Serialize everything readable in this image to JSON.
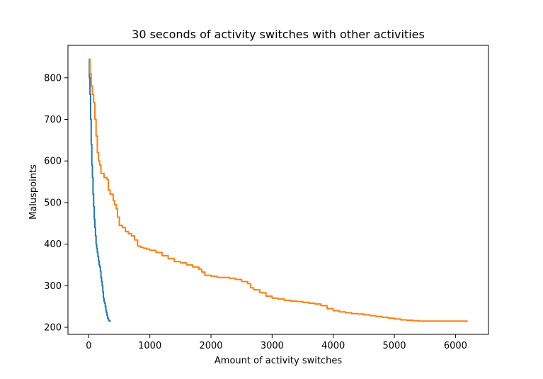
{
  "chart_data": {
    "type": "line",
    "title": "30 seconds of activity switches with other activities",
    "xlabel": "Amount of activity switches",
    "ylabel": "Maluspoints",
    "xlim": [
      -340,
      6540
    ],
    "ylim": [
      183,
      878
    ],
    "xticks": [
      0,
      1000,
      2000,
      3000,
      4000,
      5000,
      6000
    ],
    "yticks": [
      200,
      300,
      400,
      500,
      600,
      700,
      800
    ],
    "grid": false,
    "legend": "none",
    "series": [
      {
        "color": "#1f77b4",
        "x": [
          0,
          10,
          20,
          30,
          40,
          50,
          60,
          70,
          80,
          90,
          100,
          110,
          120,
          130,
          140,
          150,
          160,
          170,
          180,
          190,
          200,
          210,
          220,
          230,
          240,
          250,
          260,
          270,
          280,
          290,
          300,
          310,
          320,
          330,
          340,
          350,
          360
        ],
        "values": [
          845,
          800,
          760,
          700,
          640,
          590,
          560,
          520,
          490,
          460,
          440,
          420,
          400,
          390,
          380,
          370,
          360,
          350,
          345,
          335,
          320,
          310,
          300,
          285,
          270,
          262,
          258,
          250,
          240,
          235,
          228,
          222,
          218,
          216,
          215,
          215,
          215
        ]
      },
      {
        "color": "#ff7f0e",
        "x": [
          0,
          20,
          40,
          60,
          80,
          100,
          120,
          140,
          160,
          180,
          200,
          250,
          300,
          320,
          350,
          400,
          420,
          450,
          470,
          500,
          550,
          600,
          650,
          700,
          750,
          800,
          850,
          900,
          950,
          1000,
          1100,
          1200,
          1300,
          1400,
          1500,
          1600,
          1700,
          1800,
          1850,
          1900,
          2000,
          2100,
          2200,
          2300,
          2400,
          2500,
          2600,
          2650,
          2700,
          2800,
          2900,
          3000,
          3100,
          3200,
          3300,
          3400,
          3500,
          3600,
          3700,
          3800,
          3900,
          4000,
          4100,
          4200,
          4300,
          4400,
          4500,
          4600,
          4700,
          4800,
          4900,
          5000,
          5100,
          5200,
          5300,
          5400,
          5500,
          5600,
          5800,
          6000,
          6200
        ],
        "values": [
          845,
          810,
          780,
          760,
          740,
          700,
          660,
          620,
          600,
          590,
          570,
          560,
          555,
          530,
          520,
          505,
          495,
          485,
          465,
          445,
          440,
          430,
          425,
          420,
          410,
          395,
          392,
          390,
          388,
          385,
          380,
          372,
          365,
          358,
          355,
          350,
          345,
          340,
          333,
          325,
          323,
          320,
          320,
          318,
          315,
          310,
          305,
          295,
          290,
          283,
          275,
          270,
          268,
          265,
          263,
          262,
          260,
          258,
          256,
          252,
          245,
          240,
          237,
          235,
          233,
          232,
          230,
          228,
          226,
          224,
          222,
          220,
          218,
          217,
          216,
          215,
          215,
          215,
          215,
          215,
          215
        ]
      }
    ]
  }
}
